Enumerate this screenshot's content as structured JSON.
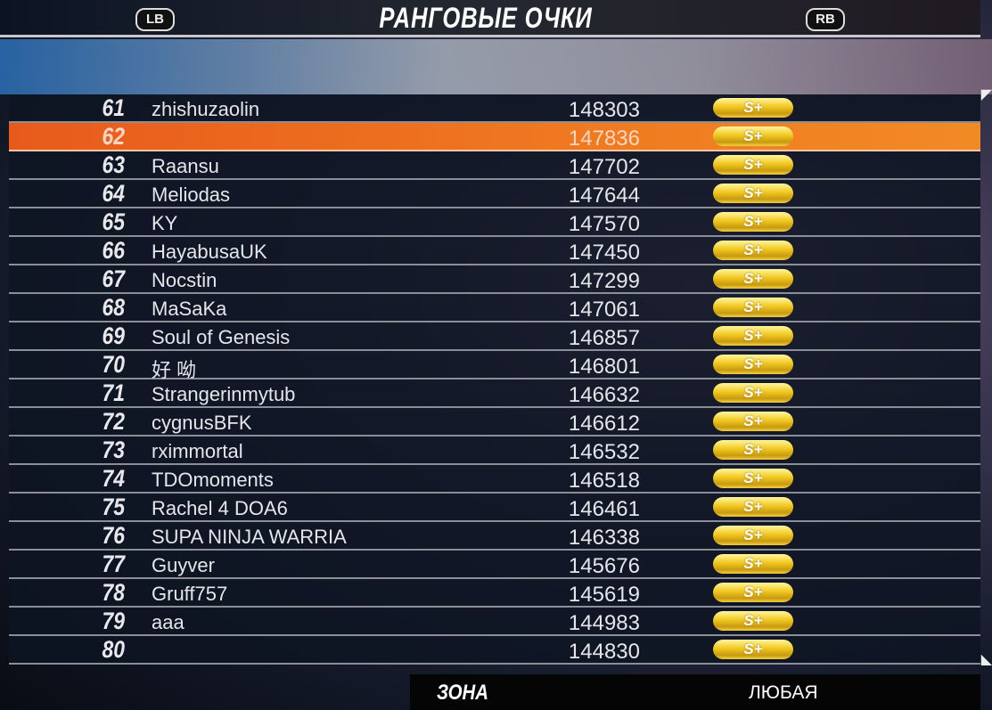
{
  "header": {
    "title": "РАНГОВЫЕ ОЧКИ",
    "left_bumper": "LB",
    "right_bumper": "RB"
  },
  "rows": [
    {
      "rank": "61",
      "name": "zhishuzaolin",
      "score": "148303",
      "grade": "S+"
    },
    {
      "rank": "62",
      "name": "",
      "score": "147836",
      "grade": "S+",
      "selected": true
    },
    {
      "rank": "63",
      "name": "Raansu",
      "score": "147702",
      "grade": "S+"
    },
    {
      "rank": "64",
      "name": "Meliodas",
      "score": "147644",
      "grade": "S+"
    },
    {
      "rank": "65",
      "name": "KY",
      "score": "147570",
      "grade": "S+"
    },
    {
      "rank": "66",
      "name": "HayabusaUK",
      "score": "147450",
      "grade": "S+"
    },
    {
      "rank": "67",
      "name": "Nocstin",
      "score": "147299",
      "grade": "S+"
    },
    {
      "rank": "68",
      "name": "MaSaKa",
      "score": "147061",
      "grade": "S+"
    },
    {
      "rank": "69",
      "name": "Soul of Genesis",
      "score": "146857",
      "grade": "S+"
    },
    {
      "rank": "70",
      "name": "好 呦",
      "score": "146801",
      "grade": "S+"
    },
    {
      "rank": "71",
      "name": "Strangerinmytub",
      "score": "146632",
      "grade": "S+"
    },
    {
      "rank": "72",
      "name": "cygnusBFK",
      "score": "146612",
      "grade": "S+"
    },
    {
      "rank": "73",
      "name": "rximmortal",
      "score": "146532",
      "grade": "S+"
    },
    {
      "rank": "74",
      "name": "TDOmoments",
      "score": "146518",
      "grade": "S+"
    },
    {
      "rank": "75",
      "name": "Rachel 4 DOA6",
      "score": "146461",
      "grade": "S+"
    },
    {
      "rank": "76",
      "name": "SUPA NINJA WARRIA",
      "score": "146338",
      "grade": "S+"
    },
    {
      "rank": "77",
      "name": "Guyver",
      "score": "145676",
      "grade": "S+"
    },
    {
      "rank": "78",
      "name": "Gruff757",
      "score": "145619",
      "grade": "S+"
    },
    {
      "rank": "79",
      "name": "aaa",
      "score": "144983",
      "grade": "S+"
    },
    {
      "rank": "80",
      "name": "",
      "score": "144830",
      "grade": "S+"
    }
  ],
  "footer": {
    "zone_label": "ЗОНА",
    "zone_value": "ЛЮБАЯ"
  }
}
